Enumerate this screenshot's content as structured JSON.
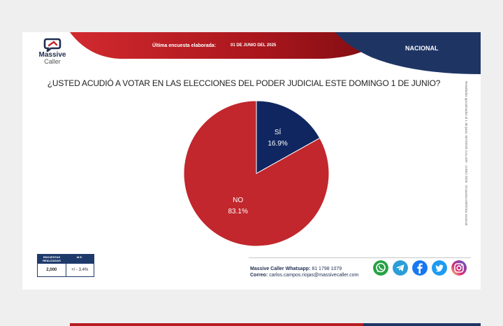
{
  "header": {
    "logo_line1": "Massive",
    "logo_line2": "Caller",
    "last_survey_label": "Última encuesta elaborada:",
    "last_survey_date": "01 DE JUNIO DEL 2025",
    "scope": "NACIONAL"
  },
  "question": "¿USTED ACUDIÓ A VOTAR EN LAS ELECCIONES DEL PODER JUDICIAL ESTE DOMINGO 1 DE JUNIO?",
  "side_note": "Resultados aproximados al 1 de junio. MASSIVE CALLER - JUNIO 2025 · Encuesta telefónica nacional",
  "chart_data": {
    "type": "pie",
    "title": "¿USTED ACUDIÓ A VOTAR EN LAS ELECCIONES DEL PODER JUDICIAL ESTE DOMINGO 1 DE JUNIO?",
    "slices": [
      {
        "label": "SÍ",
        "value": 16.9,
        "display": "16.9%",
        "color": "#0f2660"
      },
      {
        "label": "NO",
        "value": 83.1,
        "display": "83.1%",
        "color": "#c1272d"
      }
    ],
    "start_angle_deg": 0,
    "direction": "clockwise"
  },
  "stats": {
    "surveys_label": "ENCUESTAS REALIZADAS",
    "margin_label": "M.E.",
    "surveys_value": "2,000",
    "margin_value": "+/ - 3.4%"
  },
  "contact": {
    "whatsapp_label": "Massive Caller Whatsapp:",
    "whatsapp_value": "81 1798 1079",
    "email_label": "Correo:",
    "email_value": "carlos.campos.riojas@massivecaller.com"
  },
  "social_icons": [
    {
      "name": "whatsapp-icon",
      "color": "#25a244"
    },
    {
      "name": "telegram-icon",
      "color": "#2a9ed8"
    },
    {
      "name": "facebook-icon",
      "color": "#1877f2"
    },
    {
      "name": "twitter-icon",
      "color": "#1d9bf0"
    },
    {
      "name": "instagram-icon",
      "color": "#d62976"
    }
  ]
}
